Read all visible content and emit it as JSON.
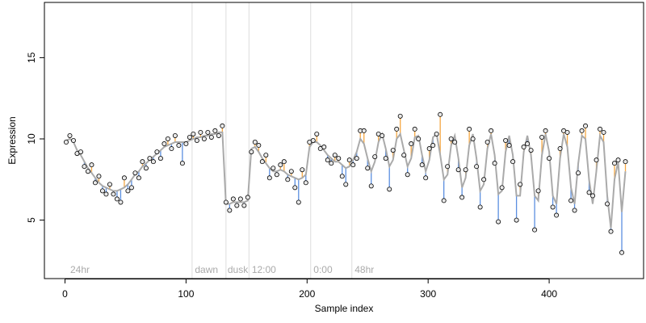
{
  "chart_data": {
    "type": "scatter",
    "x_label": "Sample index",
    "y_label": "Expression",
    "xlim": [
      -17,
      478
    ],
    "ylim": [
      1.4,
      18.4
    ],
    "xticks": [
      0,
      100,
      200,
      300,
      400
    ],
    "yticks": [
      5,
      10,
      15
    ],
    "vlines": [
      105,
      133,
      152,
      203,
      237
    ],
    "annotations": [
      {
        "x": 3,
        "label": "24hr"
      },
      {
        "x": 106,
        "label": "dawn"
      },
      {
        "x": 133,
        "label": "dusk"
      },
      {
        "x": 153,
        "label": "12:00"
      },
      {
        "x": 204,
        "label": "0:00"
      },
      {
        "x": 238,
        "label": "48hr"
      }
    ],
    "point_color": "#e8e8e8",
    "above_color": "#f5a742",
    "below_color": "#5b8fe0",
    "fit_color": "#aaaaaa",
    "x": [
      1,
      4,
      7,
      10,
      13,
      16,
      19,
      22,
      25,
      28,
      31,
      34,
      37,
      40,
      43,
      46,
      49,
      52,
      55,
      58,
      61,
      64,
      67,
      70,
      73,
      76,
      79,
      82,
      85,
      88,
      91,
      94,
      97,
      100,
      103,
      106,
      109,
      112,
      115,
      118,
      121,
      124,
      127,
      130,
      133,
      136,
      139,
      142,
      145,
      148,
      151,
      154,
      157,
      160,
      163,
      166,
      169,
      172,
      175,
      178,
      181,
      184,
      187,
      190,
      193,
      196,
      199,
      202,
      205,
      208,
      211,
      214,
      217,
      220,
      223,
      226,
      229,
      232,
      235,
      238,
      241,
      244,
      247,
      250,
      253,
      256,
      259,
      262,
      265,
      268,
      271,
      274,
      277,
      280,
      283,
      286,
      289,
      292,
      295,
      298,
      301,
      304,
      307,
      310,
      313,
      316,
      319,
      322,
      325,
      328,
      331,
      334,
      337,
      340,
      343,
      346,
      349,
      352,
      355,
      358,
      361,
      364,
      367,
      370,
      373,
      376,
      379,
      382,
      385,
      388,
      391,
      394,
      397,
      400,
      403,
      406,
      409,
      412,
      415,
      418,
      421,
      424,
      427,
      430,
      433,
      436,
      439,
      442,
      445,
      448,
      451,
      454,
      457,
      460,
      463
    ],
    "values": [
      9.8,
      10.2,
      9.9,
      9.1,
      9.2,
      8.3,
      8.0,
      8.4,
      7.3,
      7.7,
      6.8,
      6.6,
      7.2,
      6.6,
      6.3,
      6.1,
      7.6,
      6.8,
      7.0,
      7.9,
      7.6,
      8.6,
      8.2,
      8.8,
      8.6,
      9.2,
      8.8,
      9.7,
      10.0,
      9.4,
      10.2,
      9.6,
      8.5,
      9.7,
      10.1,
      10.3,
      9.9,
      10.4,
      10.0,
      10.4,
      10.1,
      10.5,
      10.2,
      10.8,
      6.1,
      5.6,
      6.3,
      5.9,
      6.3,
      5.9,
      6.4,
      9.2,
      9.8,
      9.6,
      8.6,
      9.0,
      7.6,
      8.2,
      7.8,
      8.4,
      8.6,
      7.5,
      8.0,
      7.0,
      6.1,
      8.1,
      7.3,
      9.8,
      9.9,
      10.3,
      9.4,
      9.5,
      8.7,
      8.5,
      9.0,
      8.8,
      7.7,
      7.2,
      8.7,
      8.4,
      8.8,
      10.5,
      10.5,
      8.2,
      7.1,
      8.9,
      10.3,
      10.2,
      8.8,
      6.9,
      9.3,
      10.6,
      11.4,
      9.0,
      7.8,
      9.7,
      10.6,
      10.0,
      8.4,
      7.6,
      9.4,
      9.6,
      10.3,
      11.5,
      6.2,
      8.3,
      10.0,
      9.8,
      8.1,
      6.4,
      8.1,
      10.6,
      10.0,
      8.3,
      5.8,
      7.5,
      9.8,
      10.5,
      8.5,
      4.9,
      7.0,
      9.9,
      9.6,
      8.6,
      5.0,
      7.2,
      9.5,
      9.7,
      9.3,
      4.4,
      6.8,
      10.1,
      10.5,
      8.8,
      5.8,
      5.3,
      9.4,
      10.5,
      10.4,
      6.2,
      5.6,
      7.9,
      10.5,
      10.8,
      6.7,
      6.5,
      8.7,
      10.6,
      10.4,
      6.0,
      4.3,
      8.5,
      8.7,
      3.0,
      8.6
    ],
    "fit": [
      9.9,
      10.0,
      9.8,
      9.3,
      9.0,
      8.6,
      8.2,
      7.9,
      7.6,
      7.3,
      7.1,
      7.0,
      6.9,
      6.8,
      6.8,
      6.9,
      7.0,
      7.2,
      7.5,
      7.8,
      8.0,
      8.3,
      8.5,
      8.7,
      8.9,
      9.1,
      9.3,
      9.5,
      9.6,
      9.7,
      9.8,
      9.8,
      9.8,
      9.8,
      9.9,
      10.0,
      10.1,
      10.1,
      10.2,
      10.2,
      10.3,
      10.3,
      10.4,
      10.4,
      6.0,
      6.0,
      6.1,
      6.1,
      6.1,
      6.1,
      6.2,
      9.4,
      9.5,
      9.2,
      8.8,
      8.5,
      8.2,
      8.0,
      8.0,
      8.1,
      8.0,
      7.8,
      7.7,
      7.6,
      7.5,
      7.6,
      7.8,
      9.5,
      9.8,
      9.8,
      9.6,
      9.3,
      9.0,
      8.8,
      8.6,
      8.6,
      8.4,
      8.2,
      8.3,
      8.7,
      9.2,
      10.0,
      9.7,
      8.8,
      8.0,
      8.6,
      9.8,
      10.3,
      9.4,
      8.3,
      8.7,
      10.0,
      10.3,
      9.3,
      8.3,
      8.8,
      10.1,
      10.2,
      9.0,
      8.0,
      8.7,
      10.1,
      10.3,
      9.0,
      7.5,
      7.8,
      9.6,
      10.2,
      8.8,
      7.0,
      7.6,
      9.6,
      10.3,
      8.8,
      6.8,
      7.2,
      9.4,
      10.3,
      9.0,
      6.6,
      6.8,
      9.2,
      10.2,
      9.0,
      6.5,
      6.5,
      9.2,
      10.2,
      9.0,
      6.5,
      6.2,
      9.0,
      10.3,
      9.2,
      6.5,
      6.0,
      8.8,
      10.3,
      9.5,
      7.0,
      6.0,
      8.5,
      10.2,
      10.0,
      7.5,
      6.0,
      8.0,
      10.2,
      9.8,
      6.5,
      4.5,
      7.5,
      8.6,
      5.5,
      8.0
    ]
  }
}
